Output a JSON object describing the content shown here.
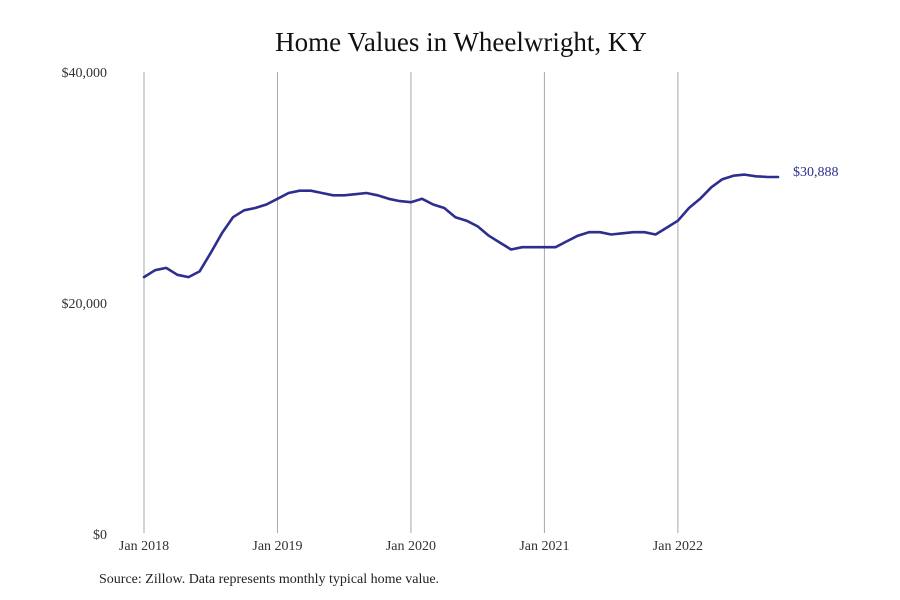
{
  "chart_data": {
    "type": "line",
    "title": "Home Values in Wheelwright, KY",
    "xlabel": "",
    "ylabel": "",
    "x_ticks": [
      "Jan 2018",
      "Jan 2019",
      "Jan 2020",
      "Jan 2021",
      "Jan 2022"
    ],
    "y_ticks": [
      "$0",
      "$20,000",
      "$40,000"
    ],
    "ylim": [
      0,
      40000
    ],
    "xlim": [
      "2018-01",
      "2022-10"
    ],
    "grid": "vertical lines at January of each year",
    "line_color": "#2e2e8f",
    "end_label": "$30,888",
    "series": [
      {
        "x": [
          "2018-01",
          "2018-02",
          "2018-03",
          "2018-04",
          "2018-05",
          "2018-06",
          "2018-07",
          "2018-08",
          "2018-09",
          "2018-10",
          "2018-11",
          "2018-12",
          "2019-01",
          "2019-02",
          "2019-03",
          "2019-04",
          "2019-05",
          "2019-06",
          "2019-07",
          "2019-08",
          "2019-09",
          "2019-10",
          "2019-11",
          "2019-12",
          "2020-01",
          "2020-02",
          "2020-03",
          "2020-04",
          "2020-05",
          "2020-06",
          "2020-07",
          "2020-08",
          "2020-09",
          "2020-10",
          "2020-11",
          "2020-12",
          "2021-01",
          "2021-02",
          "2021-03",
          "2021-04",
          "2021-05",
          "2021-06",
          "2021-07",
          "2021-08",
          "2021-09",
          "2021-10",
          "2021-11",
          "2021-12",
          "2022-01",
          "2022-02",
          "2022-03",
          "2022-04",
          "2022-05",
          "2022-06",
          "2022-07",
          "2022-08",
          "2022-09",
          "2022-10"
        ],
        "values": [
          22200,
          22800,
          23000,
          22400,
          22200,
          22700,
          24300,
          26000,
          27400,
          28000,
          28200,
          28500,
          29000,
          29500,
          29700,
          29700,
          29500,
          29300,
          29300,
          29400,
          29500,
          29300,
          29000,
          28800,
          28700,
          29000,
          28500,
          28200,
          27400,
          27100,
          26600,
          25800,
          25200,
          24600,
          24800,
          24800,
          24800,
          24800,
          25300,
          25800,
          26100,
          26100,
          25900,
          26000,
          26100,
          26100,
          25900,
          26500,
          27100,
          28200,
          29000,
          30000,
          30700,
          31000,
          31100,
          30950,
          30900,
          30888
        ]
      }
    ]
  },
  "source": "Source: Zillow. Data represents monthly typical home value."
}
